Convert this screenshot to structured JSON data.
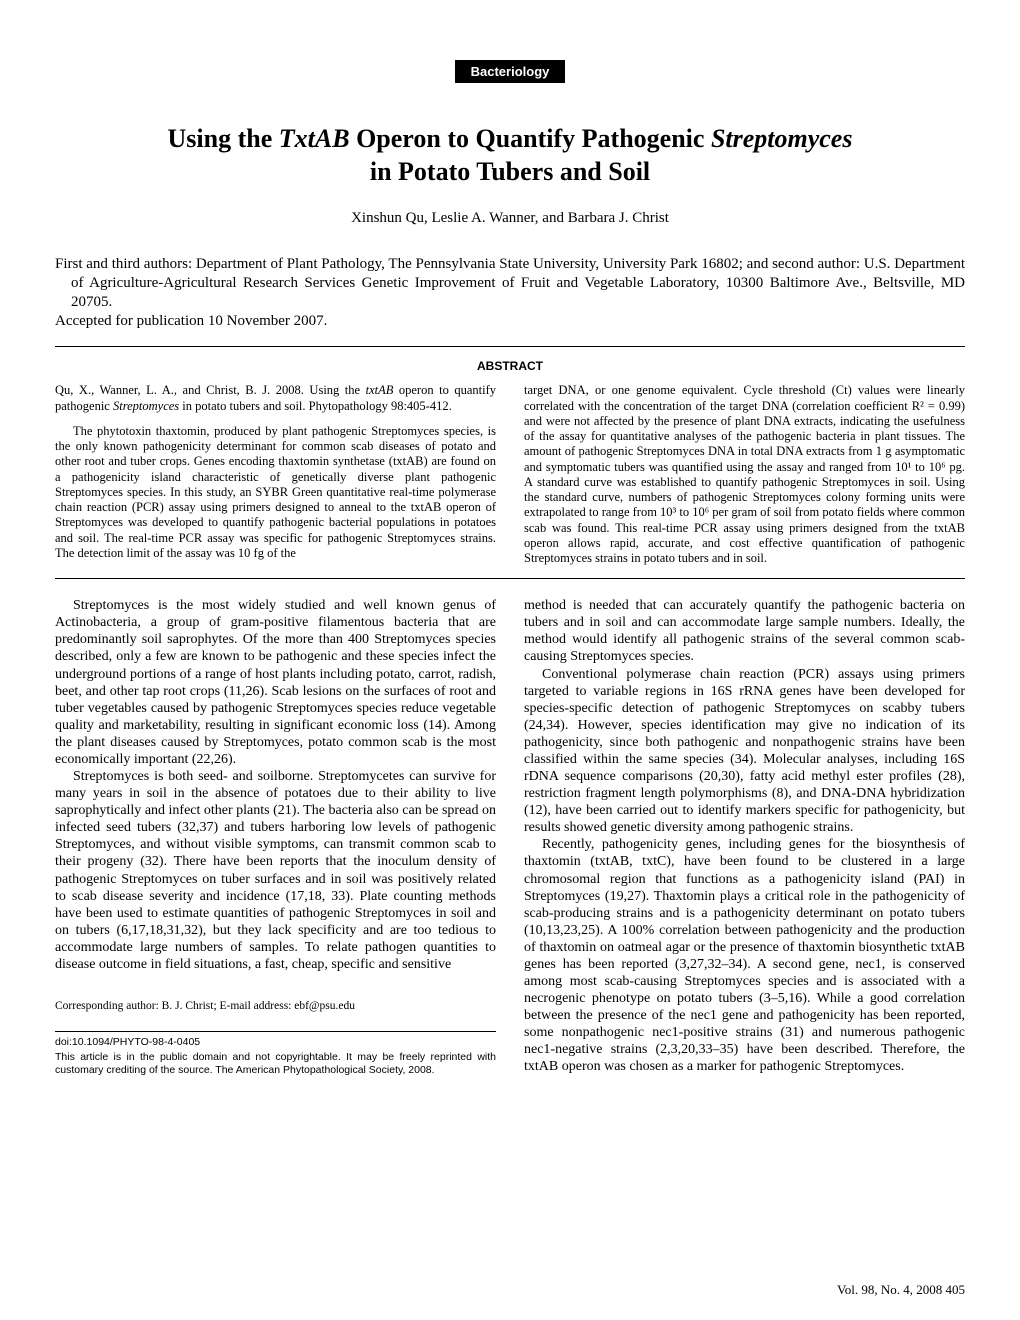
{
  "category": "Bacteriology",
  "title_plain": "Using the ",
  "title_ital1": "TxtAB",
  "title_mid": " Operon to Quantify Pathogenic ",
  "title_ital2": "Streptomyces",
  "title_line2": "in Potato Tubers and Soil",
  "authors": "Xinshun Qu, Leslie A. Wanner, and Barbara J. Christ",
  "affiliations": "First and third authors: Department of Plant Pathology, The Pennsylvania State University, University Park 16802; and second author: U.S. Department of Agriculture-Agricultural Research Services Genetic Improvement of Fruit and Vegetable Laboratory, 10300 Baltimore Ave., Beltsville, MD 20705.",
  "accepted": "Accepted for publication 10 November 2007.",
  "abstract_label": "ABSTRACT",
  "abstract_citation_a": "Qu, X., Wanner, L. A., and Christ, B. J. 2008. Using the ",
  "abstract_citation_ital": "txtAB",
  "abstract_citation_b": " operon to quantify pathogenic ",
  "abstract_citation_ital2": "Streptomyces",
  "abstract_citation_c": " in potato tubers and soil. Phytopathology 98:405-412.",
  "abstract_left": "The phytotoxin thaxtomin, produced by plant pathogenic Streptomyces species, is the only known pathogenicity determinant for common scab diseases of potato and other root and tuber crops. Genes encoding thaxtomin synthetase (txtAB) are found on a pathogenicity island characteristic of genetically diverse plant pathogenic Streptomyces species. In this study, an SYBR Green quantitative real-time polymerase chain reaction (PCR) assay using primers designed to anneal to the txtAB operon of Streptomyces was developed to quantify pathogenic bacterial populations in potatoes and soil. The real-time PCR assay was specific for pathogenic Streptomyces strains. The detection limit of the assay was 10 fg of the",
  "abstract_right": "target DNA, or one genome equivalent. Cycle threshold (Ct) values were linearly correlated with the concentration of the target DNA (correlation coefficient R² = 0.99) and were not affected by the presence of plant DNA extracts, indicating the usefulness of the assay for quantitative analyses of the pathogenic bacteria in plant tissues. The amount of pathogenic Streptomyces DNA in total DNA extracts from 1 g asymptomatic and symptomatic tubers was quantified using the assay and ranged from 10¹ to 10⁶ pg. A standard curve was established to quantify pathogenic Streptomyces in soil. Using the standard curve, numbers of pathogenic Streptomyces colony forming units were extrapolated to range from 10³ to 10⁶ per gram of soil from potato fields where common scab was found. This real-time PCR assay using primers designed from the txtAB operon allows rapid, accurate, and cost effective quantification of pathogenic Streptomyces strains in potato tubers and in soil.",
  "body_left_p1": "Streptomyces is the most widely studied and well known genus of Actinobacteria, a group of gram-positive filamentous bacteria that are predominantly soil saprophytes. Of the more than 400 Streptomyces species described, only a few are known to be pathogenic and these species infect the underground portions of a range of host plants including potato, carrot, radish, beet, and other tap root crops (11,26). Scab lesions on the surfaces of root and tuber vegetables caused by pathogenic Streptomyces species reduce vegetable quality and marketability, resulting in significant economic loss (14). Among the plant diseases caused by Streptomyces, potato common scab is the most economically important (22,26).",
  "body_left_p2": "Streptomyces is both seed- and soilborne. Streptomycetes can survive for many years in soil in the absence of potatoes due to their ability to live saprophytically and infect other plants (21). The bacteria also can be spread on infected seed tubers (32,37) and tubers harboring low levels of pathogenic Streptomyces, and without visible symptoms, can transmit common scab to their progeny (32). There have been reports that the inoculum density of pathogenic Streptomyces on tuber surfaces and in soil was positively related to scab disease severity and incidence (17,18, 33). Plate counting methods have been used to estimate quantities of pathogenic Streptomyces in soil and on tubers (6,17,18,31,32), but they lack specificity and are too tedious to accommodate large numbers of samples. To relate pathogen quantities to disease outcome in field situations, a fast, cheap, specific and sensitive",
  "body_right_p1": "method is needed that can accurately quantify the pathogenic bacteria on tubers and in soil and can accommodate large sample numbers. Ideally, the method would identify all pathogenic strains of the several common scab-causing Streptomyces species.",
  "body_right_p2": "Conventional polymerase chain reaction (PCR) assays using primers targeted to variable regions in 16S rRNA genes have been developed for species-specific detection of pathogenic Streptomyces on scabby tubers (24,34). However, species identification may give no indication of its pathogenicity, since both pathogenic and nonpathogenic strains have been classified within the same species (34). Molecular analyses, including 16S rDNA sequence comparisons (20,30), fatty acid methyl ester profiles (28), restriction fragment length polymorphisms (8), and DNA-DNA hybridization (12), have been carried out to identify markers specific for pathogenicity, but results showed genetic diversity among pathogenic strains.",
  "body_right_p3": "Recently, pathogenicity genes, including genes for the biosynthesis of thaxtomin (txtAB, txtC), have been found to be clustered in a large chromosomal region that functions as a pathogenicity island (PAI) in Streptomyces (19,27). Thaxtomin plays a critical role in the pathogenicity of scab-producing strains and is a pathogenicity determinant on potato tubers (10,13,23,25). A 100% correlation between pathogenicity and the production of thaxtomin on oatmeal agar or the presence of thaxtomin biosynthetic txtAB genes has been reported (3,27,32–34). A second gene, nec1, is conserved among most scab-causing Streptomyces species and is associated with a necrogenic phenotype on potato tubers (3–5,16). While a good correlation between the presence of the nec1 gene and pathogenicity has been reported, some nonpathogenic nec1-positive strains (31) and numerous pathogenic nec1-negative strains (2,3,20,33–35) have been described. Therefore, the txtAB operon was chosen as a marker for pathogenic Streptomyces.",
  "corresponding": "Corresponding author: B. J. Christ; E-mail address: ebf@psu.edu",
  "doi": "doi:10.1094/PHYTO-98-4-0405",
  "copyright": "This article is in the public domain and not copyrightable. It may be freely reprinted with customary crediting of the source. The American Phytopathological Society, 2008.",
  "footer": "Vol. 98, No. 4, 2008    405"
}
